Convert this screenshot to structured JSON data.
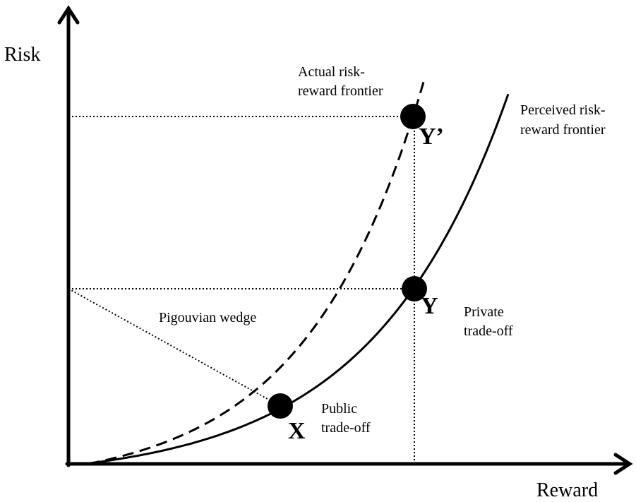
{
  "axes": {
    "y_label": "Risk",
    "x_label": "Reward"
  },
  "curves": {
    "actual": [
      "Actual risk-",
      "reward frontier"
    ],
    "perceived": [
      "Perceived risk-",
      "reward frontier"
    ]
  },
  "points": {
    "y_prime": "Y’",
    "y": "Y",
    "x": "X"
  },
  "annotations": {
    "private": [
      "Private",
      "trade-off"
    ],
    "public": [
      "Public",
      "trade-off"
    ],
    "wedge": "Pigouvian wedge"
  }
}
